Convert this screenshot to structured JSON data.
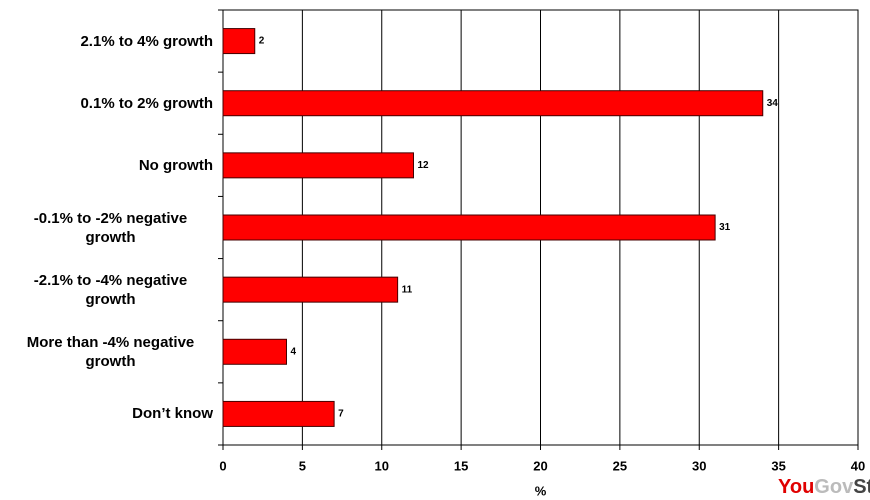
{
  "chart_data": {
    "type": "bar",
    "orientation": "horizontal",
    "categories": [
      "2.1% to 4% growth",
      "0.1% to 2% growth",
      "No growth",
      "-0.1% to -2% negative growth",
      "-2.1% to -4% negative growth",
      "More than -4% negative growth",
      "Don’t know"
    ],
    "values": [
      2,
      34,
      12,
      31,
      11,
      4,
      7
    ],
    "color": "#ff0000",
    "xlabel": "%",
    "xlim": [
      0,
      40
    ],
    "xticks": [
      0,
      5,
      10,
      15,
      20,
      25,
      30,
      35,
      40
    ],
    "grid": true,
    "logo": [
      "You",
      "Gov",
      "Stone"
    ]
  }
}
